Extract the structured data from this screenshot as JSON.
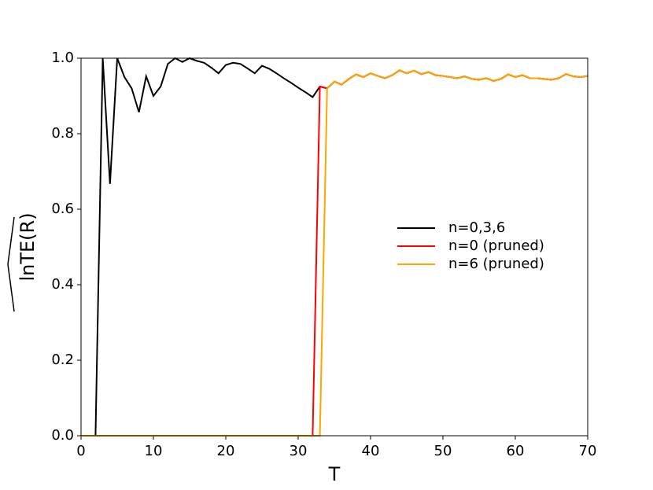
{
  "chart_data": {
    "type": "line",
    "x": [
      0,
      1,
      2,
      3,
      4,
      5,
      6,
      7,
      8,
      9,
      10,
      11,
      12,
      13,
      14,
      15,
      16,
      17,
      18,
      19,
      20,
      21,
      22,
      23,
      24,
      25,
      26,
      27,
      28,
      29,
      30,
      31,
      32,
      33,
      34,
      35,
      36,
      37,
      38,
      39,
      40,
      41,
      42,
      43,
      44,
      45,
      46,
      47,
      48,
      49,
      50,
      51,
      52,
      53,
      54,
      55,
      56,
      57,
      58,
      59,
      60,
      61,
      62,
      63,
      64,
      65,
      66,
      67,
      68,
      69,
      70
    ],
    "series": [
      {
        "name": "n=0,3,6",
        "color": "#000000",
        "values": [
          null,
          null,
          0,
          1,
          0.667,
          1,
          0.95,
          0.92,
          0.857,
          0.952,
          0.9,
          0.925,
          0.985,
          1.0,
          0.99,
          1.0,
          0.993,
          0.988,
          0.975,
          0.96,
          0.982,
          0.988,
          0.985,
          0.973,
          0.96,
          0.98,
          0.972,
          0.96,
          0.947,
          0.935,
          0.922,
          0.91,
          0.897,
          0.925,
          0.92,
          0.938,
          0.93,
          0.945,
          0.957,
          0.95,
          0.96,
          0.953,
          0.947,
          0.955,
          0.968,
          0.96,
          0.967,
          0.958,
          0.963,
          0.955,
          0.953,
          0.95,
          0.947,
          0.952,
          0.945,
          0.943,
          0.947,
          0.94,
          0.945,
          0.957,
          0.95,
          0.955,
          0.947,
          0.947,
          0.945,
          0.943,
          0.947,
          0.958,
          0.952,
          0.95,
          0.953
        ]
      },
      {
        "name": "n=0 (pruned)",
        "color": "#ff0000",
        "values": [
          0,
          0,
          0,
          0,
          0,
          0,
          0,
          0,
          0,
          0,
          0,
          0,
          0,
          0,
          0,
          0,
          0,
          0,
          0,
          0,
          0,
          0,
          0,
          0,
          0,
          0,
          0,
          0,
          0,
          0,
          0,
          0,
          0,
          0.925,
          0.92,
          0.938,
          0.93,
          0.945,
          0.957,
          0.95,
          0.96,
          0.953,
          0.947,
          0.955,
          0.968,
          0.96,
          0.967,
          0.958,
          0.963,
          0.955,
          0.953,
          0.95,
          0.947,
          0.952,
          0.945,
          0.943,
          0.947,
          0.94,
          0.945,
          0.957,
          0.95,
          0.955,
          0.947,
          0.947,
          0.945,
          0.943,
          0.947,
          0.958,
          0.952,
          0.95,
          0.953
        ]
      },
      {
        "name": "n=6 (pruned)",
        "color": "#ffa500",
        "values": [
          0,
          0,
          0,
          0,
          0,
          0,
          0,
          0,
          0,
          0,
          0,
          0,
          0,
          0,
          0,
          0,
          0,
          0,
          0,
          0,
          0,
          0,
          0,
          0,
          0,
          0,
          0,
          0,
          0,
          0,
          0,
          0,
          0,
          0,
          0.92,
          0.938,
          0.93,
          0.945,
          0.957,
          0.95,
          0.96,
          0.953,
          0.947,
          0.955,
          0.968,
          0.96,
          0.967,
          0.958,
          0.963,
          0.955,
          0.953,
          0.95,
          0.947,
          0.952,
          0.945,
          0.943,
          0.947,
          0.94,
          0.945,
          0.957,
          0.95,
          0.955,
          0.947,
          0.947,
          0.945,
          0.943,
          0.947,
          0.958,
          0.952,
          0.95,
          0.953
        ]
      }
    ],
    "xlabel": "T",
    "ylabel": "lnTE(R)",
    "xlim": [
      0,
      70
    ],
    "ylim": [
      0,
      1
    ],
    "xticks": [
      0,
      10,
      20,
      30,
      40,
      50,
      60,
      70
    ],
    "yticks": [
      {
        "value": 0,
        "label": "0.0"
      },
      {
        "value": 0.2,
        "label": "0.2"
      },
      {
        "value": 0.4,
        "label": "0.4"
      },
      {
        "value": 0.6,
        "label": "0.6"
      },
      {
        "value": 0.8,
        "label": "0.8"
      },
      {
        "value": 1,
        "label": "1.0"
      }
    ],
    "legend": "center right"
  }
}
